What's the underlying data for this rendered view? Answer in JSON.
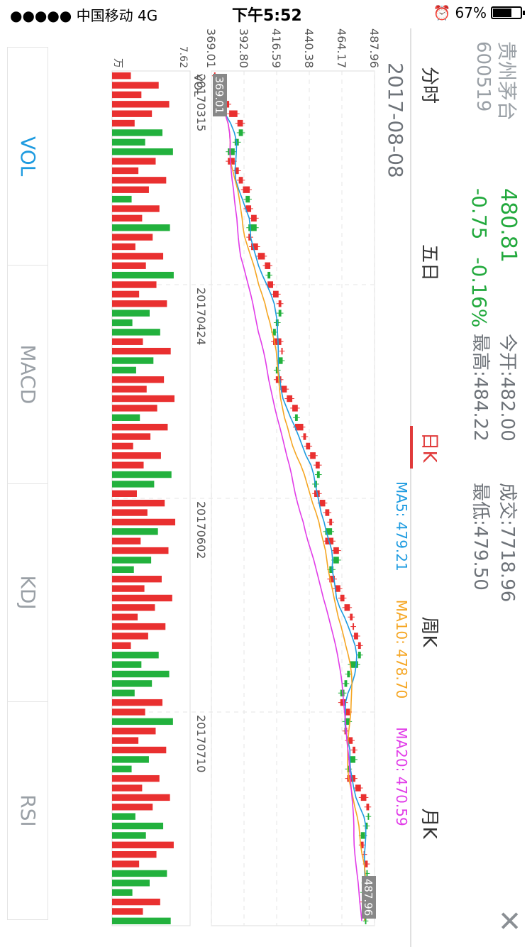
{
  "status_bar": {
    "carrier": "●●●●● 中国移动",
    "network": "4G",
    "time": "下午5:52",
    "battery": "67%"
  },
  "stock": {
    "name": "贵州茅台",
    "code": "600519",
    "price": "480.81",
    "change": "-0.75",
    "change_pct": "-0.16%"
  },
  "quote": {
    "open": "今开:482.00",
    "high": "最高:484.22",
    "volume": "成交:7718.96",
    "low": "最低:479.50"
  },
  "tabs": [
    {
      "label": "分时"
    },
    {
      "label": "五日"
    },
    {
      "label": "日K"
    },
    {
      "label": "周K"
    },
    {
      "label": "月K"
    }
  ],
  "chart": {
    "date_label": "2017-08-08",
    "ma5": "MA5: 479.21",
    "ma10": "MA10: 478.70",
    "ma20": "MA20: 470.59",
    "price_ticks": [
      "487.96",
      "464.17",
      "440.38",
      "416.59",
      "392.80",
      "369.01"
    ],
    "date_ticks": [
      "20170315",
      "20170424",
      "20170602",
      "20170710"
    ],
    "max_label": "487.96",
    "min_label": "369.01",
    "vol_label": "VOL",
    "vol_max": "7.62",
    "vol_unit": "万"
  },
  "indicators": [
    {
      "label": "VOL"
    },
    {
      "label": "MACD"
    },
    {
      "label": "KDJ"
    },
    {
      "label": "RSI"
    }
  ],
  "colors": {
    "up": "#e93030",
    "down": "#22b13d",
    "ma5": "#1e9be0",
    "ma10": "#f5a623",
    "ma20": "#e13ce8"
  },
  "chart_data": {
    "type": "candlestick",
    "price_range": [
      369.01,
      487.96
    ],
    "dates_shown": [
      "20170315",
      "20170424",
      "20170602",
      "20170710"
    ],
    "closes": [
      372,
      375,
      378,
      382,
      388,
      392,
      389,
      386,
      381,
      386,
      389,
      392,
      397,
      394,
      398,
      402,
      396,
      398,
      403,
      408,
      412,
      410,
      414,
      418,
      420,
      418,
      416,
      414,
      420,
      421,
      418,
      416,
      420,
      424,
      428,
      432,
      430,
      436,
      438,
      441,
      445,
      448,
      446,
      444,
      448,
      452,
      455,
      457,
      452,
      458,
      462,
      458,
      455,
      459,
      463,
      466,
      470,
      472,
      473,
      476,
      478,
      476,
      470,
      468,
      466,
      463,
      467,
      470,
      466,
      468,
      472,
      474,
      470,
      468,
      474,
      478,
      482,
      484,
      483,
      481,
      478,
      480,
      481,
      483,
      482,
      480,
      479,
      481,
      482,
      481
    ],
    "volume_max_wan": 7.62
  }
}
